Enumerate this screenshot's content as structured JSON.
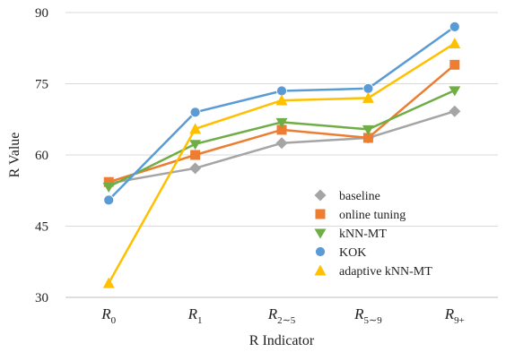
{
  "chart_data": {
    "type": "line",
    "xlabel": "R Indicator",
    "ylabel": "R Value",
    "categories": [
      {
        "main": "R",
        "sub": "0"
      },
      {
        "main": "R",
        "sub": "1"
      },
      {
        "main": "R",
        "sub": "2∼5"
      },
      {
        "main": "R",
        "sub": "5∼9"
      },
      {
        "main": "R",
        "sub": "9+"
      }
    ],
    "ylim": [
      30,
      90
    ],
    "yticks": [
      "30",
      "45",
      "60",
      "75",
      "90"
    ],
    "grid": "horizontal",
    "legend_position": "bottom-right",
    "series": [
      {
        "name": "baseline",
        "color": "#a5a5a5",
        "marker": "diamond",
        "values": [
          54.0,
          57.2,
          62.5,
          63.6,
          69.2
        ]
      },
      {
        "name": "online tuning",
        "color": "#ed7d31",
        "marker": "square",
        "values": [
          54.3,
          60.0,
          65.3,
          63.6,
          79.0
        ]
      },
      {
        "name": "kNN-MT",
        "color": "#70ad47",
        "marker": "triangle-down",
        "values": [
          53.3,
          62.3,
          66.9,
          65.4,
          73.6
        ]
      },
      {
        "name": "KOK",
        "color": "#5b9bd5",
        "marker": "circle",
        "values": [
          50.5,
          69.0,
          73.5,
          74.0,
          87.0
        ]
      },
      {
        "name": "adaptive kNN-MT",
        "color": "#ffc000",
        "marker": "triangle-up",
        "values": [
          33.0,
          65.5,
          71.5,
          72.0,
          83.5
        ]
      }
    ]
  }
}
